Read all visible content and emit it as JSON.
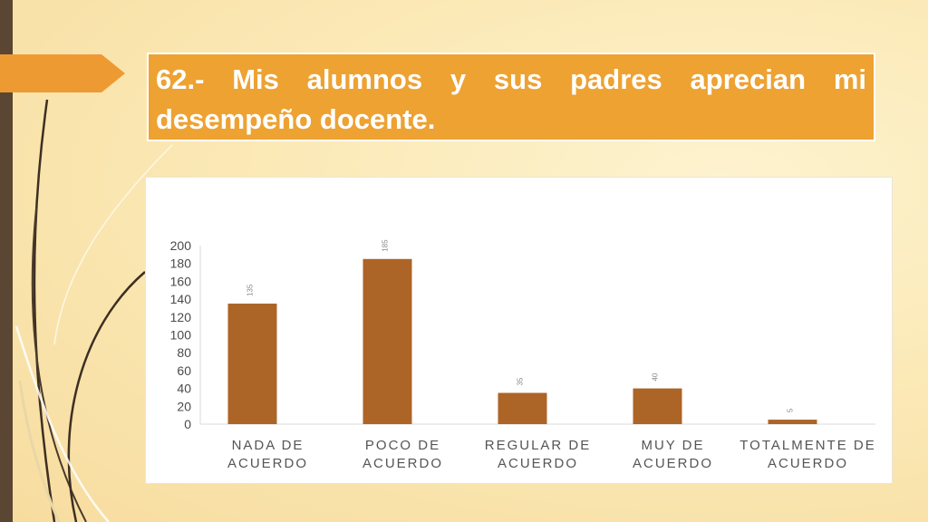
{
  "slide": {
    "title": "62.- Mis alumnos y sus padres aprecian mi desempeño docente."
  },
  "colors": {
    "accent": "#eda232",
    "sidebar": "#5a4632",
    "bar": "#ad6427"
  },
  "chart_data": {
    "type": "bar",
    "categories": [
      "NADA DE ACUERDO",
      "POCO DE ACUERDO",
      "REGULAR DE ACUERDO",
      "MUY DE ACUERDO",
      "TOTALMENTE DE ACUERDO"
    ],
    "category_lines": [
      [
        "NADA DE",
        "ACUERDO"
      ],
      [
        "POCO DE",
        "ACUERDO"
      ],
      [
        "REGULAR DE",
        "ACUERDO"
      ],
      [
        "MUY DE",
        "ACUERDO"
      ],
      [
        "TOTALMENTE DE",
        "ACUERDO"
      ]
    ],
    "values": [
      135,
      185,
      35,
      40,
      5
    ],
    "ylim": [
      0,
      200
    ],
    "yticks": [
      0,
      20,
      40,
      60,
      80,
      100,
      120,
      140,
      160,
      180,
      200
    ],
    "grid": false,
    "legend": "none",
    "data_labels": "rotated, above bars"
  }
}
